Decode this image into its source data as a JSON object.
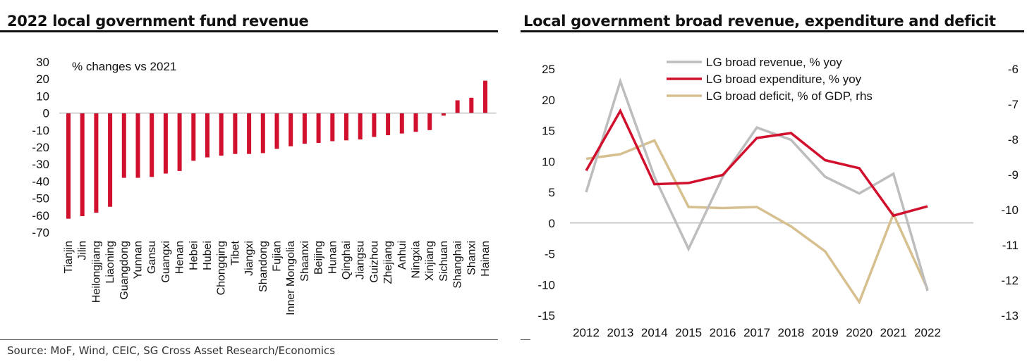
{
  "left_panel": {
    "title": "2022 local government fund revenue"
  },
  "right_panel": {
    "title": "Local government broad revenue, expenditure and deficit"
  },
  "source": "Source: MoF, Wind, CEIC, SG Cross Asset Research/Economics",
  "colors": {
    "red": "#d0102c",
    "gray": "#bdbdbd",
    "tan": "#d7c090",
    "axis": "#999999"
  },
  "chart_data": [
    {
      "type": "bar",
      "title": "2022 local government fund revenue",
      "annotation": "% changes vs 2021",
      "categories": [
        "Tianjin",
        "Jilin",
        "Heilongjiang",
        "Liaoning",
        "Guangdong",
        "Yunnan",
        "Gansu",
        "Guangxi",
        "Henan",
        "Hebei",
        "Hubei",
        "Chongqing",
        "Tibet",
        "Jiangxi",
        "Shandong",
        "Fujian",
        "Inner Mongolia",
        "Shaanxi",
        "Beijing",
        "Hunan",
        "Qinghai",
        "Jiangsu",
        "Guizhou",
        "Zhejiang",
        "Anhui",
        "Ningxia",
        "Xinjiang",
        "Sichuan",
        "Shanghai",
        "Shanxi",
        "Hainan"
      ],
      "values": [
        -62,
        -60.5,
        -58.5,
        -55,
        -38,
        -38,
        -37.5,
        -35.5,
        -34,
        -28,
        -26,
        -25,
        -24,
        -24,
        -23.5,
        -21,
        -19.5,
        -18,
        -17.5,
        -16.5,
        -16,
        -15.5,
        -14,
        -13,
        -12,
        -11,
        -10,
        -1.5,
        7.5,
        9,
        19
      ],
      "ylim": [
        -70,
        30
      ],
      "yticks": [
        30,
        20,
        10,
        0,
        -10,
        -20,
        -30,
        -40,
        -50,
        -60,
        -70
      ],
      "grid": false
    },
    {
      "type": "line",
      "title": "Local government broad revenue, expenditure and deficit",
      "x": [
        "2012",
        "2013",
        "2014",
        "2015",
        "2016",
        "2017",
        "2018",
        "2019",
        "2020",
        "2021",
        "2022"
      ],
      "ylim": [
        -15,
        25
      ],
      "yticks": [
        25,
        20,
        15,
        10,
        5,
        0,
        -5,
        -10,
        -15
      ],
      "y2lim": [
        -13,
        -6
      ],
      "y2ticks": [
        -6,
        -7,
        -8,
        -9,
        -10,
        -11,
        -12,
        -13
      ],
      "legend_position": "top-center",
      "series": [
        {
          "name": "LG broad revenue, % yoy",
          "axis": "left",
          "color": "gray",
          "values": [
            5,
            23,
            7.5,
            -4.2,
            7.5,
            15.5,
            13.5,
            7.5,
            4.8,
            8,
            -11
          ]
        },
        {
          "name": "LG broad expenditure, % yoy",
          "axis": "left",
          "color": "red",
          "values": [
            8.5,
            18.2,
            6.3,
            6.5,
            7.8,
            13.8,
            14.6,
            10.2,
            8.9,
            1.2,
            2.7
          ]
        },
        {
          "name": "LG broad deficit, % of GDP, rhs",
          "axis": "right",
          "color": "tan",
          "values": [
            -8.55,
            -8.42,
            -8.03,
            -9.92,
            -9.95,
            -9.92,
            -10.47,
            -11.18,
            -12.62,
            -10.12,
            -12.25
          ]
        }
      ]
    }
  ]
}
